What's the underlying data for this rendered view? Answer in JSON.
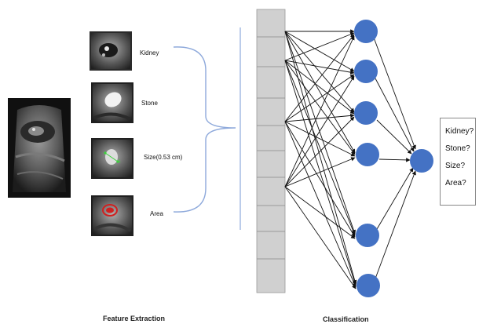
{
  "features": [
    {
      "label": "Kidney"
    },
    {
      "label": "Stone"
    },
    {
      "label": "Size(0.53 cm)"
    },
    {
      "label": "Area"
    }
  ],
  "outputs": [
    {
      "label": "Kidney?"
    },
    {
      "label": "Stone?"
    },
    {
      "label": "Size?"
    },
    {
      "label": "Area?"
    }
  ],
  "sections": {
    "feature_extraction": "Feature Extraction",
    "classification": "Classification"
  },
  "colors": {
    "node_fill": "#4472c4",
    "layer_fill": "#d0d0d0",
    "brace": "#8ea9db",
    "arrow": "#111111",
    "red_region": "#d02020"
  },
  "icons": {
    "full_scan": "kidney-ultrasound-image",
    "kidney_crop": "kidney-crop-image",
    "stone_crop": "stone-crop-image",
    "size_crop": "size-measurement-image",
    "area_crop": "area-segmentation-image"
  }
}
